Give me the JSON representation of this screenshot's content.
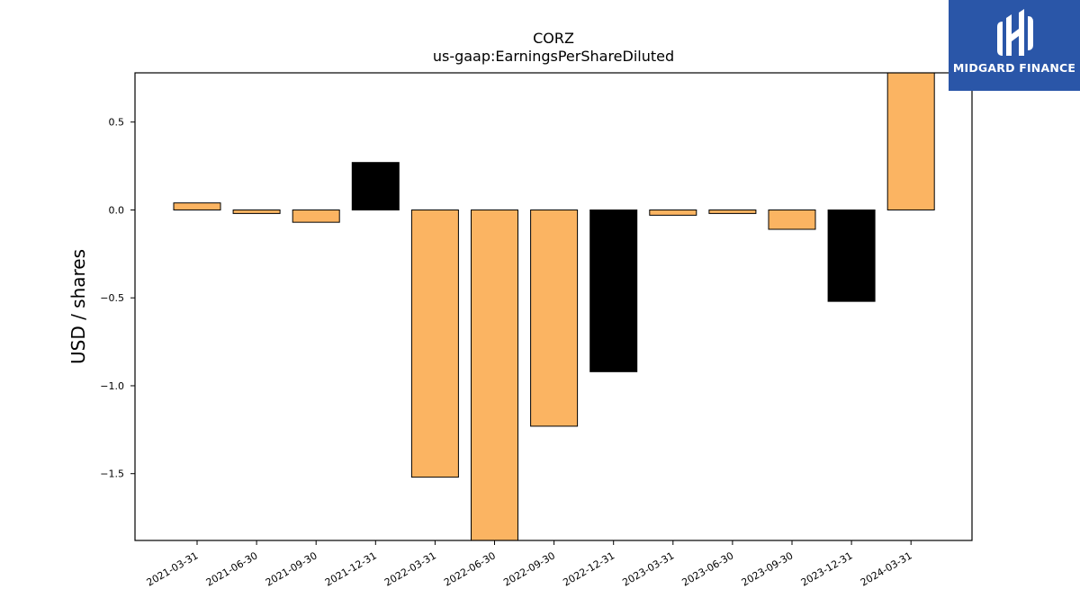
{
  "brand": {
    "name": "MIDGARD FINANCE",
    "background": "#2a56a8"
  },
  "chart_data": {
    "type": "bar",
    "title": "CORZ",
    "subtitle": "us-gaap:EarningsPerShareDiluted",
    "xlabel": "",
    "ylabel": "USD / shares",
    "ylim": [
      -1.88,
      0.78
    ],
    "yticks": [
      0.5,
      0.0,
      -0.5,
      -1.0,
      -1.5
    ],
    "ytick_labels": [
      "0.5",
      "0.0",
      "−0.5",
      "−1.0",
      "−1.5"
    ],
    "grid": false,
    "categories": [
      "2021-03-31",
      "2021-06-30",
      "2021-09-30",
      "2021-12-31",
      "2022-03-31",
      "2022-06-30",
      "2022-09-30",
      "2022-12-31",
      "2023-03-31",
      "2023-06-30",
      "2023-09-30",
      "2023-12-31",
      "2024-03-31"
    ],
    "values": [
      0.04,
      -0.02,
      -0.07,
      0.27,
      -1.52,
      -1.95,
      -1.23,
      -0.92,
      -0.03,
      -0.02,
      -0.11,
      -0.52,
      0.85
    ],
    "bar_colors": [
      "#fbb462",
      "#fbb462",
      "#fbb462",
      "#000000",
      "#fbb462",
      "#fbb462",
      "#fbb462",
      "#000000",
      "#fbb462",
      "#fbb462",
      "#fbb462",
      "#000000",
      "#fbb462"
    ]
  }
}
